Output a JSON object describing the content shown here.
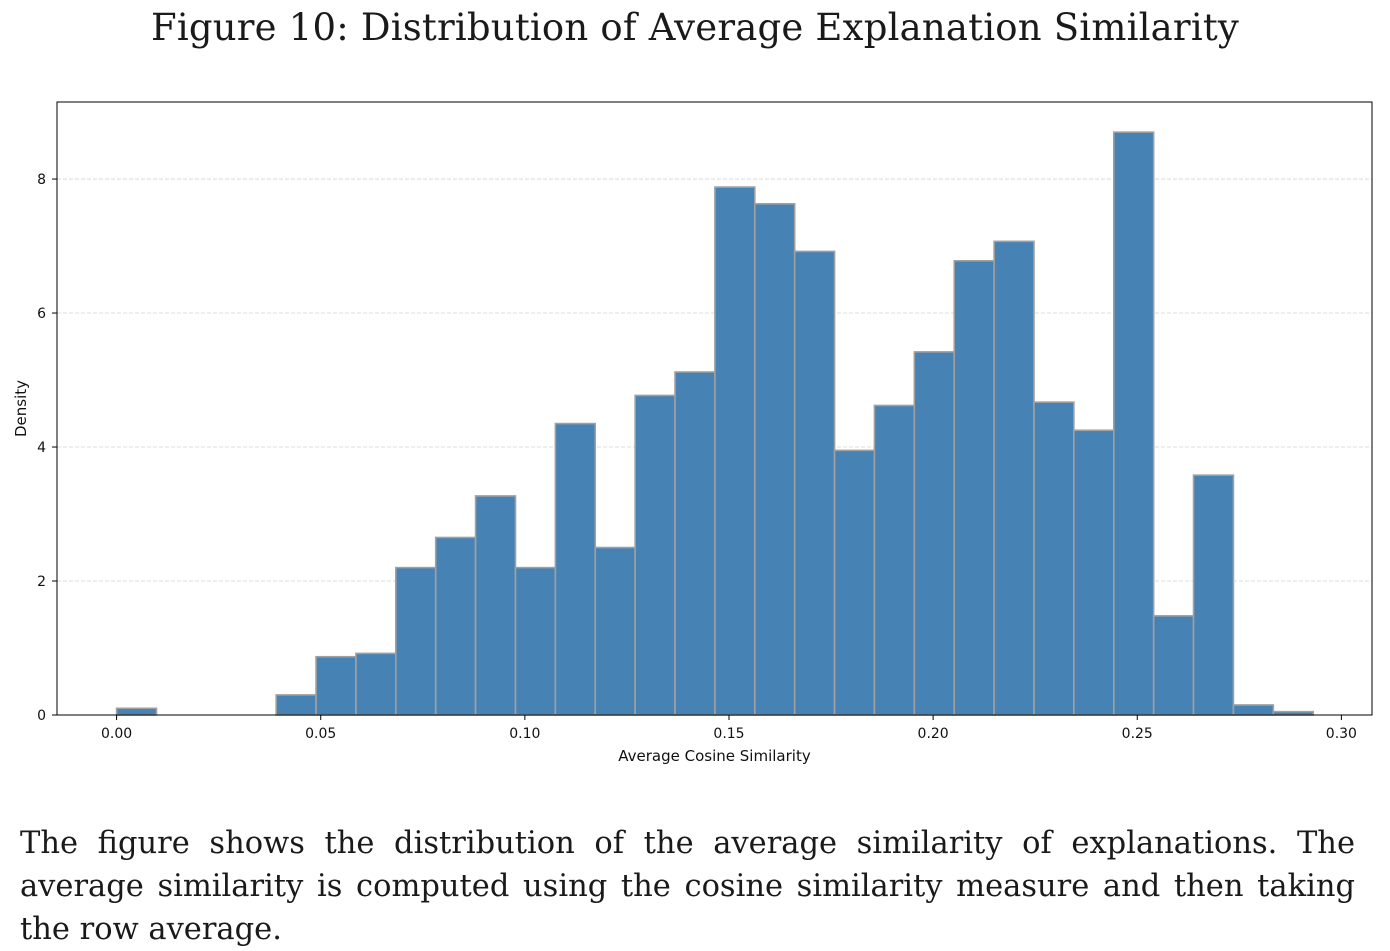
{
  "figure": {
    "title": "Figure 10: Distribution of Average Explanation Similarity",
    "caption": "The figure shows the distribution of the average similarity of explanations. The average similarity is computed using the cosine similarity measure and then taking the row average."
  },
  "chart_data": {
    "type": "bar",
    "histogram": true,
    "xlabel": "Average Cosine Similarity",
    "ylabel": "Density",
    "xlim": [
      -0.0146,
      0.3075
    ],
    "ylim": [
      0,
      9.15
    ],
    "xticks": [
      "0.00",
      "0.05",
      "0.10",
      "0.15",
      "0.20",
      "0.25",
      "0.30"
    ],
    "xtick_values": [
      0,
      0.05,
      0.1,
      0.15,
      0.2,
      0.25,
      0.3
    ],
    "yticks": [
      "0",
      "2",
      "4",
      "6",
      "8"
    ],
    "ytick_values": [
      0,
      2,
      4,
      6,
      8
    ],
    "grid": "y-dashed",
    "bar_color": "#4682b4",
    "edge_color": "#a0a0a0",
    "bin_start": 0.0,
    "bin_width": 0.00977,
    "values": [
      0.1,
      0,
      0,
      0,
      0.3,
      0.87,
      0.92,
      2.2,
      2.65,
      3.27,
      2.2,
      4.35,
      2.5,
      4.77,
      5.12,
      7.88,
      7.63,
      6.92,
      3.95,
      4.62,
      5.42,
      6.78,
      7.07,
      4.67,
      4.25,
      8.7,
      1.48,
      3.58,
      0.15,
      0.05
    ]
  }
}
